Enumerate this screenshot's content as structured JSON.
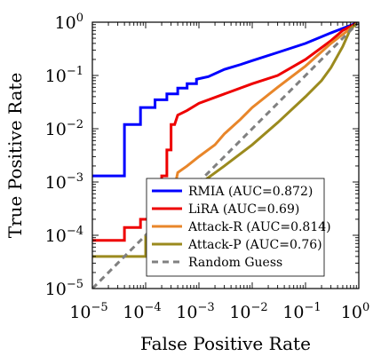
{
  "chart_data": {
    "type": "line",
    "title": "",
    "xlabel": "False Positive Rate",
    "ylabel": "True Positive Rate",
    "x_scale": "log",
    "y_scale": "log",
    "xlim": [
      1e-05,
      1
    ],
    "ylim": [
      1e-05,
      1
    ],
    "x_ticks": [
      {
        "base": "10",
        "exp": "−5",
        "value": 1e-05
      },
      {
        "base": "10",
        "exp": "−4",
        "value": 0.0001
      },
      {
        "base": "10",
        "exp": "−3",
        "value": 0.001
      },
      {
        "base": "10",
        "exp": "−2",
        "value": 0.01
      },
      {
        "base": "10",
        "exp": "−1",
        "value": 0.1
      },
      {
        "base": "10",
        "exp": "0",
        "value": 1
      }
    ],
    "y_ticks": [
      {
        "base": "10",
        "exp": "−5",
        "value": 1e-05
      },
      {
        "base": "10",
        "exp": "−4",
        "value": 0.0001
      },
      {
        "base": "10",
        "exp": "−3",
        "value": 0.001
      },
      {
        "base": "10",
        "exp": "−2",
        "value": 0.01
      },
      {
        "base": "10",
        "exp": "−1",
        "value": 0.1
      },
      {
        "base": "10",
        "exp": "0",
        "value": 1
      }
    ],
    "grid": false,
    "legend_position": "lower-right",
    "series": [
      {
        "name": "RMIA (AUC=0.872)",
        "color": "#0000ff",
        "dash": "solid",
        "points": [
          [
            1e-05,
            0.0013
          ],
          [
            4e-05,
            0.0013
          ],
          [
            4e-05,
            0.012
          ],
          [
            8e-05,
            0.012
          ],
          [
            8e-05,
            0.025
          ],
          [
            0.00015,
            0.025
          ],
          [
            0.00015,
            0.035
          ],
          [
            0.00025,
            0.035
          ],
          [
            0.00025,
            0.045
          ],
          [
            0.0004,
            0.045
          ],
          [
            0.0004,
            0.058
          ],
          [
            0.0006,
            0.058
          ],
          [
            0.0006,
            0.07
          ],
          [
            0.0009,
            0.07
          ],
          [
            0.0009,
            0.085
          ],
          [
            0.0015,
            0.095
          ],
          [
            0.003,
            0.13
          ],
          [
            0.006,
            0.16
          ],
          [
            0.01,
            0.19
          ],
          [
            0.03,
            0.27
          ],
          [
            0.1,
            0.4
          ],
          [
            0.3,
            0.63
          ],
          [
            1,
            1
          ]
        ]
      },
      {
        "name": "LiRA (AUC=0.69)",
        "color": "#ee0000",
        "dash": "solid",
        "points": [
          [
            1e-05,
            8e-05
          ],
          [
            4e-05,
            8e-05
          ],
          [
            4e-05,
            0.00014
          ],
          [
            8e-05,
            0.00014
          ],
          [
            8e-05,
            0.0002
          ],
          [
            0.00012,
            0.0002
          ],
          [
            0.00012,
            0.0003
          ],
          [
            0.00015,
            0.0003
          ],
          [
            0.00015,
            0.0006
          ],
          [
            0.0002,
            0.0006
          ],
          [
            0.0002,
            0.0013
          ],
          [
            0.00025,
            0.0013
          ],
          [
            0.00025,
            0.004
          ],
          [
            0.0003,
            0.004
          ],
          [
            0.0003,
            0.012
          ],
          [
            0.00035,
            0.012
          ],
          [
            0.0004,
            0.018
          ],
          [
            0.0006,
            0.022
          ],
          [
            0.001,
            0.03
          ],
          [
            0.003,
            0.045
          ],
          [
            0.01,
            0.07
          ],
          [
            0.03,
            0.1
          ],
          [
            0.1,
            0.2
          ],
          [
            0.3,
            0.45
          ],
          [
            0.5,
            0.7
          ],
          [
            1,
            1
          ]
        ]
      },
      {
        "name": "Attack-R (AUC=0.814)",
        "color": "#e8862a",
        "dash": "solid",
        "points": [
          [
            0.00015,
            0.0002
          ],
          [
            0.0002,
            0.00025
          ],
          [
            0.0002,
            0.0004
          ],
          [
            0.00025,
            0.0004
          ],
          [
            0.0003,
            0.0005
          ],
          [
            0.0003,
            0.0008
          ],
          [
            0.00035,
            0.0008
          ],
          [
            0.0004,
            0.0015
          ],
          [
            0.0006,
            0.002
          ],
          [
            0.001,
            0.003
          ],
          [
            0.002,
            0.005
          ],
          [
            0.003,
            0.008
          ],
          [
            0.006,
            0.015
          ],
          [
            0.01,
            0.025
          ],
          [
            0.03,
            0.06
          ],
          [
            0.1,
            0.15
          ],
          [
            0.3,
            0.4
          ],
          [
            1,
            1
          ]
        ]
      },
      {
        "name": "Attack-P (AUC=0.76)",
        "color": "#9b8a1e",
        "dash": "solid",
        "points": [
          [
            1e-05,
            4e-05
          ],
          [
            0.0001,
            4e-05
          ],
          [
            0.0001,
            0.0001
          ],
          [
            0.0003,
            0.0003
          ],
          [
            0.001,
            0.0009
          ],
          [
            0.003,
            0.002
          ],
          [
            0.01,
            0.005
          ],
          [
            0.03,
            0.013
          ],
          [
            0.1,
            0.04
          ],
          [
            0.2,
            0.08
          ],
          [
            0.3,
            0.14
          ],
          [
            0.5,
            0.35
          ],
          [
            0.7,
            0.75
          ],
          [
            1,
            1
          ]
        ]
      },
      {
        "name": "Random Guess",
        "color": "#808080",
        "dash": "dashed",
        "points": [
          [
            1e-05,
            1e-05
          ],
          [
            1,
            1
          ]
        ]
      }
    ]
  }
}
